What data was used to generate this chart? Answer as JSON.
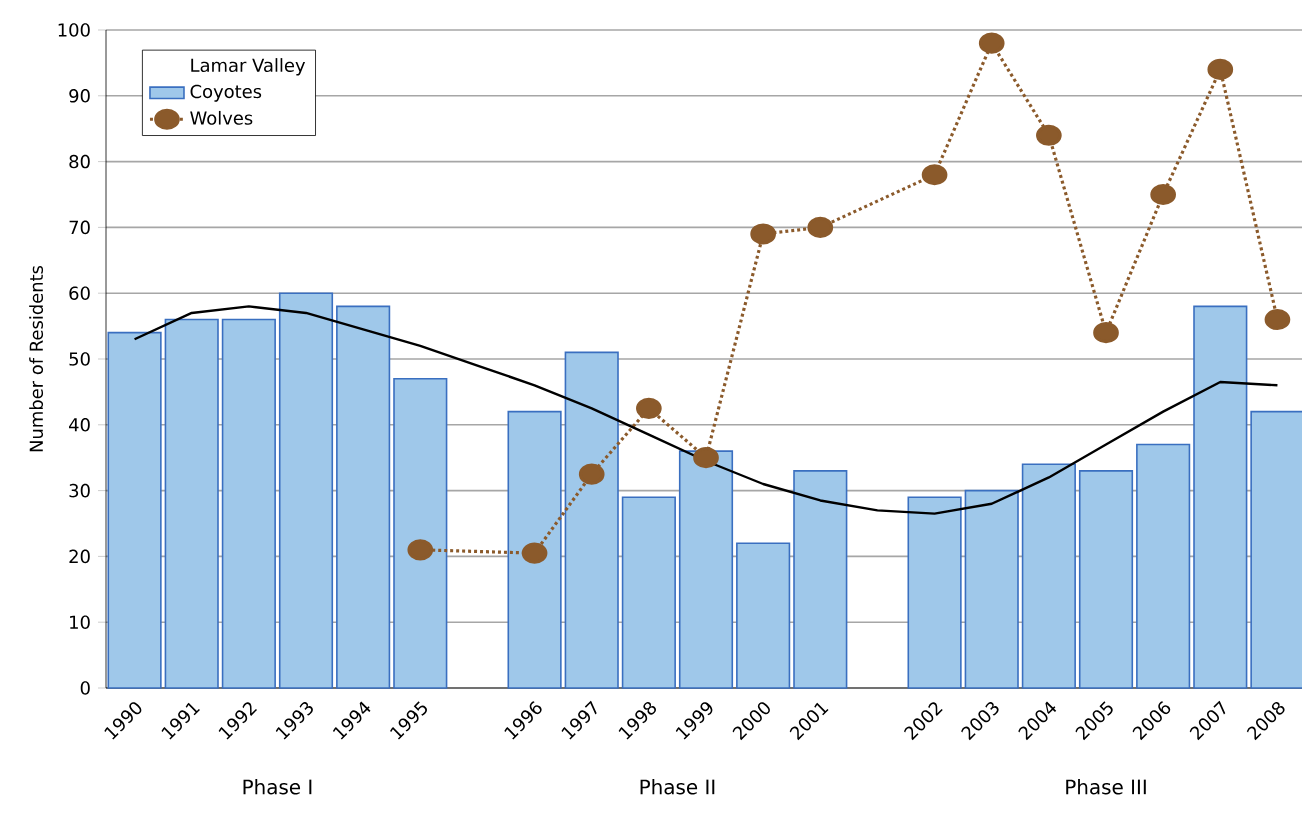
{
  "chart_data": {
    "type": "bar",
    "ylabel": "Number of Residents",
    "legend_title": "Lamar Valley",
    "categories": [
      "1990",
      "1991",
      "1992",
      "1993",
      "1994",
      "1995",
      null,
      "1996",
      "1997",
      "1998",
      "1999",
      "2000",
      "2001",
      null,
      "2002",
      "2003",
      "2004",
      "2005",
      "2006",
      "2007",
      "2008"
    ],
    "series": [
      {
        "name": "Coyotes",
        "color": "#9fc8ea",
        "values": [
          54,
          56,
          56,
          60,
          58,
          47,
          null,
          42,
          51,
          29,
          36,
          22,
          33,
          null,
          29,
          30,
          34,
          33,
          37,
          58,
          42
        ]
      },
      {
        "name": "Wolves",
        "type": "line",
        "color": "#8b5a2b",
        "marker": "circle",
        "line_style": "dotted",
        "values": [
          null,
          null,
          null,
          null,
          null,
          21,
          null,
          20.5,
          32.5,
          42.5,
          35,
          69,
          70,
          null,
          78,
          98,
          84,
          54,
          75,
          94,
          56
        ]
      },
      {
        "type": "line",
        "color": "#000000",
        "marker": "none",
        "line_style": "solid",
        "values": [
          53,
          57,
          58,
          57,
          54.5,
          52,
          49,
          46,
          42.5,
          38.5,
          34.5,
          31,
          28.5,
          27,
          26.5,
          28,
          32,
          37,
          42,
          46.5,
          46
        ]
      }
    ],
    "ylim": [
      0,
      100
    ],
    "yticks": [
      0,
      10,
      20,
      30,
      40,
      50,
      60,
      70,
      80,
      90,
      100
    ],
    "grid": "y",
    "legend": "top left",
    "annotations": [
      "Phase I",
      "Phase II",
      "Phase III"
    ]
  }
}
